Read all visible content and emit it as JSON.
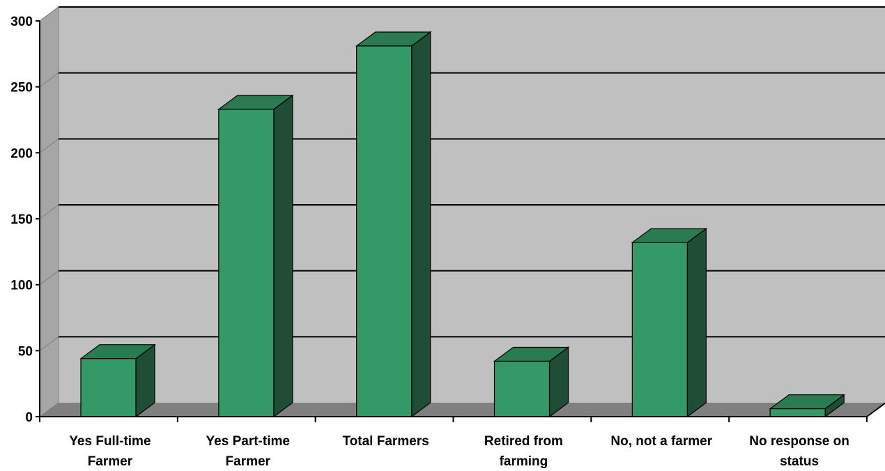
{
  "chart_data": {
    "type": "bar",
    "title": "",
    "xlabel": "",
    "ylabel": "",
    "categories": [
      [
        "Yes Full-time",
        "Farmer"
      ],
      [
        "Yes Part-time",
        "Farmer"
      ],
      [
        "Total Farmers"
      ],
      [
        "Retired from",
        "farming"
      ],
      [
        "No, not a farmer"
      ],
      [
        "No response on",
        "status"
      ]
    ],
    "values": [
      44,
      233,
      281,
      42,
      132,
      6
    ],
    "ylim": [
      0,
      300
    ],
    "yticks": [
      0,
      50,
      100,
      150,
      200,
      250,
      300
    ],
    "grid": true,
    "legend": "none",
    "colors": {
      "bar_front": "#339966",
      "bar_top": "#2a7a52",
      "bar_side": "#1f4d36",
      "plot_back": "#c0c0c0",
      "plot_wall": "#a6a6a6",
      "floor": "#808080"
    }
  }
}
